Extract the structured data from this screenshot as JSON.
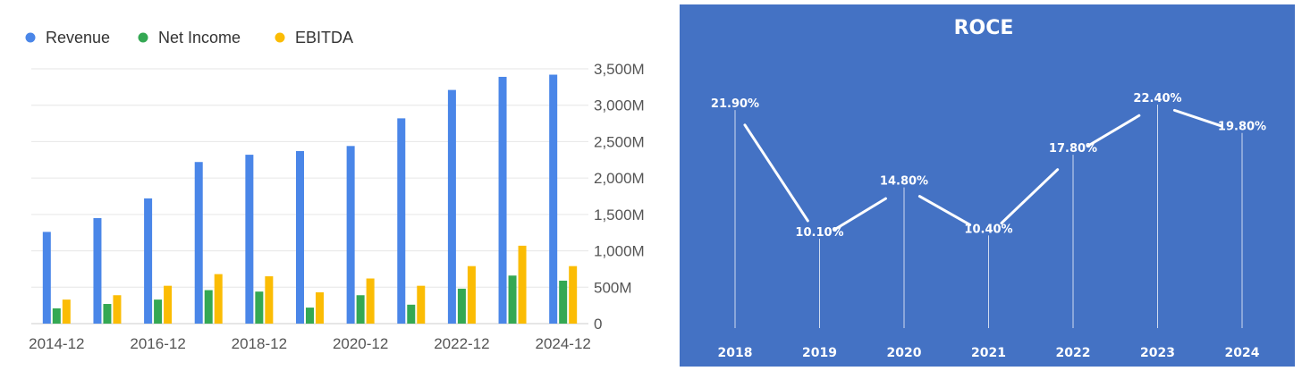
{
  "chart_data": [
    {
      "type": "bar",
      "legend": {
        "placement": "top-left",
        "items": [
          {
            "name": "Revenue",
            "color": "#4a86e8"
          },
          {
            "name": "Net Income",
            "color": "#34a853"
          },
          {
            "name": "EBITDA",
            "color": "#fbbc04"
          }
        ]
      },
      "categories": [
        "2014-12",
        "2015-12",
        "2016-12",
        "2017-12",
        "2018-12",
        "2019-12",
        "2020-12",
        "2021-12",
        "2022-12",
        "2023-12",
        "2024-12"
      ],
      "x_tick_labels": [
        "2014-12",
        "2016-12",
        "2018-12",
        "2020-12",
        "2022-12",
        "2024-12"
      ],
      "series": [
        {
          "name": "Revenue",
          "color": "#4a86e8",
          "values": [
            1260,
            1450,
            1720,
            2220,
            2320,
            2370,
            2440,
            2820,
            3210,
            3390,
            3420
          ]
        },
        {
          "name": "Net Income",
          "color": "#34a853",
          "values": [
            210,
            270,
            330,
            460,
            440,
            220,
            390,
            260,
            480,
            660,
            590
          ]
        },
        {
          "name": "EBITDA",
          "color": "#fbbc04",
          "values": [
            330,
            390,
            520,
            680,
            650,
            430,
            620,
            520,
            790,
            1070,
            790
          ]
        }
      ],
      "y_axis": {
        "position": "right",
        "ylim": [
          0,
          3500
        ],
        "ticks": [
          0,
          500,
          1000,
          1500,
          2000,
          2500,
          3000,
          3500
        ],
        "tick_labels": [
          "0",
          "500M",
          "1,000M",
          "1,500M",
          "2,000M",
          "2,500M",
          "3,000M",
          "3,500M"
        ]
      },
      "grid": true
    },
    {
      "type": "line",
      "title": "ROCE",
      "background": "#4472c4",
      "categories": [
        "2018",
        "2019",
        "2020",
        "2021",
        "2022",
        "2023",
        "2024"
      ],
      "values": [
        21.9,
        10.1,
        14.8,
        10.4,
        17.8,
        22.4,
        19.8
      ],
      "value_labels": [
        "21.90%",
        "10.10%",
        "14.80%",
        "10.40%",
        "17.80%",
        "22.40%",
        "19.80%"
      ],
      "line_color": "#ffffff",
      "drop_lines": true
    }
  ]
}
